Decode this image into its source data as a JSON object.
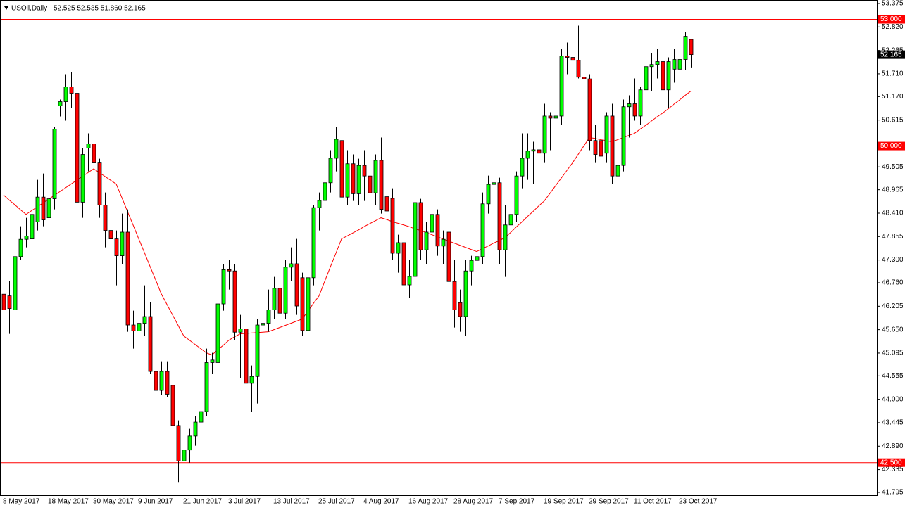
{
  "chart_data": {
    "type": "candlestick",
    "title": "USOil,Daily",
    "ohlc_text": "52.525 52.535 51.860 52.165",
    "categories": [
      "8 May 2017",
      null,
      null,
      null,
      null,
      null,
      null,
      null,
      "18 May 2017",
      null,
      null,
      null,
      null,
      null,
      null,
      null,
      "30 May 2017",
      null,
      null,
      null,
      null,
      null,
      null,
      null,
      "9 Jun 2017",
      null,
      null,
      null,
      null,
      null,
      null,
      null,
      "21 Jun 2017",
      null,
      null,
      null,
      null,
      null,
      null,
      null,
      "3 Jul 2017",
      null,
      null,
      null,
      null,
      null,
      null,
      null,
      "13 Jul 2017",
      null,
      null,
      null,
      null,
      null,
      null,
      null,
      "25 Jul 2017",
      null,
      null,
      null,
      null,
      null,
      null,
      null,
      "4 Aug 2017",
      null,
      null,
      null,
      null,
      null,
      null,
      null,
      "16 Aug 2017",
      null,
      null,
      null,
      null,
      null,
      null,
      null,
      "28 Aug 2017",
      null,
      null,
      null,
      null,
      null,
      null,
      null,
      "7 Sep 2017",
      null,
      null,
      null,
      null,
      null,
      null,
      null,
      "19 Sep 2017",
      null,
      null,
      null,
      null,
      null,
      null,
      null,
      "29 Sep 2017",
      null,
      null,
      null,
      null,
      null,
      null,
      null,
      "11 Oct 2017",
      null,
      null,
      null,
      null,
      null,
      null,
      null,
      "23 Oct 2017",
      null,
      null
    ],
    "candles": [
      [
        46.49,
        46.96,
        45.71,
        46.12
      ],
      [
        46.45,
        46.8,
        45.55,
        46.15
      ],
      [
        46.12,
        47.79,
        46.04,
        47.38
      ],
      [
        47.38,
        48.1,
        47.3,
        47.79
      ],
      [
        47.79,
        48.3,
        47.6,
        47.87
      ],
      [
        47.8,
        49.6,
        47.7,
        48.38
      ],
      [
        48.2,
        49.2,
        48.0,
        48.79
      ],
      [
        48.79,
        49.35,
        48.1,
        48.25
      ],
      [
        48.3,
        49.0,
        48.0,
        48.75
      ],
      [
        48.75,
        50.45,
        48.5,
        50.4
      ],
      [
        50.95,
        51.1,
        50.7,
        51.05
      ],
      [
        51.05,
        51.7,
        50.6,
        51.4
      ],
      [
        51.4,
        51.75,
        50.9,
        51.25
      ],
      [
        51.25,
        51.84,
        48.2,
        48.67
      ],
      [
        48.67,
        49.95,
        48.3,
        49.8
      ],
      [
        49.95,
        50.3,
        49.4,
        50.05
      ],
      [
        50.05,
        50.15,
        49.3,
        49.6
      ],
      [
        49.6,
        49.7,
        48.3,
        48.6
      ],
      [
        48.6,
        48.9,
        47.6,
        48.0
      ],
      [
        48.0,
        48.2,
        46.8,
        47.8
      ],
      [
        47.8,
        48.0,
        46.7,
        47.4
      ],
      [
        47.4,
        48.4,
        47.2,
        47.96
      ],
      [
        47.96,
        48.5,
        45.6,
        45.76
      ],
      [
        45.76,
        46.1,
        45.2,
        45.62
      ],
      [
        45.62,
        46.0,
        45.3,
        45.8
      ],
      [
        45.8,
        46.7,
        45.5,
        45.96
      ],
      [
        45.96,
        46.3,
        44.6,
        44.66
      ],
      [
        44.66,
        45.0,
        44.1,
        44.21
      ],
      [
        44.21,
        44.9,
        44.1,
        44.66
      ],
      [
        44.66,
        44.9,
        44.05,
        44.12
      ],
      [
        44.33,
        44.6,
        43.1,
        43.38
      ],
      [
        43.38,
        43.5,
        42.04,
        42.54
      ],
      [
        42.54,
        43.2,
        42.1,
        42.8
      ],
      [
        42.8,
        43.3,
        42.5,
        43.13
      ],
      [
        43.13,
        43.6,
        42.9,
        43.46
      ],
      [
        43.46,
        43.8,
        43.2,
        43.71
      ],
      [
        43.71,
        45.2,
        43.6,
        44.87
      ],
      [
        44.87,
        45.1,
        44.6,
        44.93
      ],
      [
        44.87,
        46.4,
        44.7,
        46.26
      ],
      [
        46.26,
        47.2,
        46.1,
        47.07
      ],
      [
        47.07,
        47.3,
        46.6,
        47.04
      ],
      [
        47.04,
        47.2,
        45.4,
        45.59
      ],
      [
        45.59,
        46.0,
        44.5,
        45.67
      ],
      [
        45.67,
        45.9,
        43.9,
        44.38
      ],
      [
        44.38,
        44.8,
        43.7,
        44.54
      ],
      [
        44.54,
        45.9,
        43.9,
        45.76
      ],
      [
        45.76,
        46.2,
        45.4,
        45.8
      ],
      [
        45.8,
        46.6,
        45.6,
        46.12
      ],
      [
        46.12,
        46.9,
        45.9,
        46.63
      ],
      [
        46.63,
        46.9,
        45.8,
        46.04
      ],
      [
        46.04,
        47.3,
        45.9,
        47.13
      ],
      [
        47.13,
        47.6,
        46.8,
        47.21
      ],
      [
        47.21,
        47.8,
        46.0,
        46.21
      ],
      [
        46.88,
        47.0,
        45.5,
        45.63
      ],
      [
        45.63,
        47.0,
        45.4,
        46.88
      ],
      [
        46.88,
        48.6,
        46.7,
        48.54
      ],
      [
        48.54,
        48.9,
        48.0,
        48.71
      ],
      [
        48.71,
        49.4,
        48.4,
        49.13
      ],
      [
        49.13,
        49.9,
        48.9,
        49.71
      ],
      [
        49.71,
        50.45,
        49.4,
        50.16
      ],
      [
        50.13,
        50.4,
        48.5,
        48.79
      ],
      [
        48.79,
        49.9,
        48.6,
        49.58
      ],
      [
        49.58,
        49.8,
        48.7,
        48.87
      ],
      [
        48.87,
        49.7,
        48.6,
        49.54
      ],
      [
        49.54,
        49.9,
        48.7,
        49.29
      ],
      [
        49.29,
        49.7,
        48.5,
        48.89
      ],
      [
        48.89,
        49.8,
        48.6,
        49.66
      ],
      [
        49.66,
        50.2,
        48.4,
        48.5
      ],
      [
        48.8,
        49.2,
        48.2,
        48.46
      ],
      [
        48.76,
        49.0,
        47.3,
        47.46
      ],
      [
        47.46,
        47.9,
        47.0,
        47.71
      ],
      [
        47.71,
        48.0,
        46.6,
        46.71
      ],
      [
        46.71,
        47.3,
        46.4,
        46.91
      ],
      [
        46.91,
        48.7,
        46.7,
        48.66
      ],
      [
        48.66,
        48.75,
        47.3,
        47.54
      ],
      [
        47.54,
        48.2,
        47.2,
        47.96
      ],
      [
        47.96,
        48.5,
        47.7,
        48.38
      ],
      [
        48.38,
        48.5,
        47.4,
        47.63
      ],
      [
        47.63,
        48.0,
        47.2,
        47.79
      ],
      [
        47.96,
        48.1,
        46.3,
        46.79
      ],
      [
        46.79,
        47.3,
        45.7,
        46.12
      ],
      [
        46.29,
        46.6,
        45.6,
        45.96
      ],
      [
        45.96,
        47.3,
        45.5,
        47.04
      ],
      [
        47.04,
        47.4,
        46.7,
        47.29
      ],
      [
        47.29,
        47.5,
        47.0,
        47.38
      ],
      [
        47.38,
        48.9,
        47.2,
        48.63
      ],
      [
        48.63,
        49.3,
        48.4,
        49.09
      ],
      [
        49.09,
        49.2,
        48.3,
        49.13
      ],
      [
        49.13,
        49.25,
        47.2,
        47.54
      ],
      [
        47.54,
        48.6,
        46.9,
        48.13
      ],
      [
        48.13,
        48.6,
        47.8,
        48.38
      ],
      [
        48.38,
        49.4,
        48.2,
        49.29
      ],
      [
        49.29,
        50.3,
        49.0,
        49.71
      ],
      [
        49.71,
        50.3,
        49.2,
        49.88
      ],
      [
        49.88,
        50.1,
        49.1,
        49.91
      ],
      [
        49.91,
        50.0,
        49.4,
        49.83
      ],
      [
        49.83,
        51.0,
        49.6,
        50.71
      ],
      [
        50.71,
        50.8,
        49.9,
        50.66
      ],
      [
        50.66,
        51.2,
        50.4,
        50.71
      ],
      [
        50.71,
        52.3,
        50.5,
        52.13
      ],
      [
        52.13,
        52.45,
        51.7,
        52.1
      ],
      [
        52.1,
        52.3,
        51.5,
        52.03
      ],
      [
        52.03,
        52.85,
        51.6,
        51.63
      ],
      [
        51.63,
        52.0,
        51.2,
        51.59
      ],
      [
        51.59,
        51.7,
        49.9,
        50.13
      ],
      [
        50.13,
        50.5,
        49.6,
        49.8
      ],
      [
        50.13,
        50.3,
        49.5,
        49.76
      ],
      [
        49.83,
        50.8,
        49.6,
        50.71
      ],
      [
        50.71,
        51.0,
        49.1,
        49.29
      ],
      [
        49.29,
        49.7,
        49.1,
        49.54
      ],
      [
        49.54,
        51.1,
        49.4,
        50.93
      ],
      [
        50.93,
        51.2,
        50.2,
        51.0
      ],
      [
        51.0,
        51.6,
        50.6,
        50.71
      ],
      [
        50.71,
        51.4,
        50.5,
        51.33
      ],
      [
        51.33,
        52.3,
        51.1,
        51.88
      ],
      [
        51.88,
        52.2,
        51.3,
        51.93
      ],
      [
        51.93,
        52.3,
        51.6,
        52.0
      ],
      [
        52.0,
        52.2,
        51.1,
        51.33
      ],
      [
        51.33,
        52.1,
        50.9,
        52.0
      ],
      [
        51.82,
        52.3,
        51.5,
        52.05
      ],
      [
        51.82,
        52.2,
        51.7,
        52.05
      ],
      [
        52.05,
        52.7,
        51.8,
        52.6
      ],
      [
        52.525,
        52.535,
        51.86,
        52.165
      ]
    ],
    "up_color": "#00ff00",
    "down_color": "#ff0000",
    "ma": {
      "color": "#ff0000",
      "values": [
        48.84,
        48.72,
        48.61,
        48.49,
        48.38,
        48.47,
        48.56,
        48.65,
        48.74,
        48.83,
        48.92,
        49.01,
        49.1,
        49.19,
        49.28,
        49.37,
        49.46,
        49.37,
        49.28,
        49.19,
        49.1,
        48.78,
        48.45,
        48.13,
        47.8,
        47.48,
        47.15,
        46.83,
        46.5,
        46.25,
        46.0,
        45.75,
        45.5,
        45.4,
        45.3,
        45.2,
        45.1,
        45.05,
        45.17,
        45.28,
        45.4,
        45.48,
        45.55,
        45.56,
        45.57,
        45.58,
        45.59,
        45.6,
        45.65,
        45.7,
        45.75,
        45.8,
        45.85,
        45.9,
        46.08,
        46.27,
        46.45,
        46.79,
        47.13,
        47.46,
        47.8,
        47.87,
        47.94,
        48.01,
        48.09,
        48.16,
        48.23,
        48.3,
        48.26,
        48.21,
        48.17,
        48.13,
        48.09,
        48.04,
        48.0,
        47.95,
        47.9,
        47.85,
        47.8,
        47.75,
        47.7,
        47.65,
        47.6,
        47.55,
        47.5,
        47.57,
        47.63,
        47.7,
        47.76,
        47.83,
        47.95,
        48.08,
        48.2,
        48.33,
        48.45,
        48.58,
        48.7,
        48.88,
        49.06,
        49.24,
        49.42,
        49.6,
        49.8,
        50.0,
        50.2,
        50.18,
        50.15,
        50.13,
        50.1,
        50.15,
        50.2,
        50.25,
        50.3,
        50.4,
        50.49,
        50.59,
        50.69,
        50.78,
        50.88,
        50.99,
        51.09,
        51.2,
        51.3
      ]
    },
    "ylim": [
      41.795,
      53.375
    ],
    "yticks": [
      {
        "value": 53.375,
        "label": "53.375"
      },
      {
        "value": 52.82,
        "label": "52.820"
      },
      {
        "value": 52.265,
        "label": "52.265"
      },
      {
        "value": 51.71,
        "label": "51.710"
      },
      {
        "value": 51.17,
        "label": "51.170"
      },
      {
        "value": 50.615,
        "label": "50.615"
      },
      {
        "value": 49.505,
        "label": "49.505"
      },
      {
        "value": 48.965,
        "label": "48.965"
      },
      {
        "value": 48.41,
        "label": "48.410"
      },
      {
        "value": 47.855,
        "label": "47.855"
      },
      {
        "value": 47.3,
        "label": "47.300"
      },
      {
        "value": 46.76,
        "label": "46.760"
      },
      {
        "value": 46.205,
        "label": "46.205"
      },
      {
        "value": 45.65,
        "label": "45.650"
      },
      {
        "value": 45.095,
        "label": "45.095"
      },
      {
        "value": 44.555,
        "label": "44.555"
      },
      {
        "value": 44,
        "label": "44.000"
      },
      {
        "value": 43.445,
        "label": "43.445"
      },
      {
        "value": 42.89,
        "label": "42.890"
      },
      {
        "value": 42.335,
        "label": "42.335"
      },
      {
        "value": 41.795,
        "label": "41.795"
      }
    ],
    "grid": false,
    "hlines": [
      {
        "value": 53,
        "label": "53.000",
        "color": "#ff0000"
      },
      {
        "value": 50,
        "label": "50.000",
        "color": "#ff0000"
      },
      {
        "value": 42.5,
        "label": "42.500",
        "color": "#ff0000"
      }
    ],
    "price_label": {
      "value": 52.165,
      "label": "52.165"
    }
  }
}
